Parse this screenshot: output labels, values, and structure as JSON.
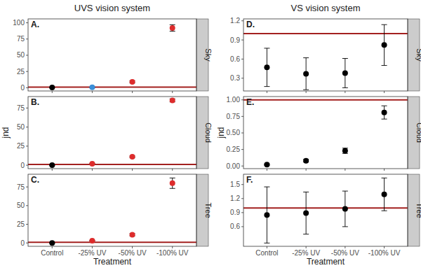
{
  "column_titles": [
    "UVS vision system",
    "VS vision system"
  ],
  "chart_data": [
    {
      "type": "scatter",
      "title": "A.",
      "subtitle": "Sky",
      "tick_labels": "y",
      "categories": [
        "Control",
        "-25% UV",
        "-50% UV",
        "-100% UV"
      ],
      "values": [
        0.3,
        0.6,
        9,
        92
      ],
      "errors": [
        0.3,
        0.3,
        1.5,
        5
      ],
      "colors": [
        "#000000",
        "#3b8ed8",
        "#dd2c2c",
        "#dd2c2c"
      ],
      "ylim": [
        -5,
        106
      ],
      "yticks": [
        0,
        25,
        50,
        75,
        100
      ],
      "hline": 1
    },
    {
      "type": "scatter",
      "title": "B.",
      "subtitle": "Cloud",
      "tick_labels": "y",
      "y_label": "jnd",
      "categories": [
        "Control",
        "-25% UV",
        "-50% UV",
        "-100% UV"
      ],
      "values": [
        0,
        2,
        11,
        85
      ],
      "errors": [
        0.3,
        0.5,
        1,
        2
      ],
      "colors": [
        "#000000",
        "#dd2c2c",
        "#dd2c2c",
        "#dd2c2c"
      ],
      "ylim": [
        -4.5,
        90
      ],
      "yticks": [
        0,
        25,
        50,
        75
      ],
      "hline": 1
    },
    {
      "type": "scatter",
      "title": "C.",
      "subtitle": "Tree",
      "x_label": "Treatment",
      "categories": [
        "Control",
        "-25% UV",
        "-50% UV",
        "-100% UV"
      ],
      "values": [
        0,
        3,
        11,
        80
      ],
      "errors": [
        0.3,
        0.5,
        1.5,
        7
      ],
      "colors": [
        "#000000",
        "#dd2c2c",
        "#dd2c2c",
        "#dd2c2c"
      ],
      "ylim": [
        -4.5,
        92
      ],
      "yticks": [
        0,
        25,
        50,
        75
      ],
      "hline": 1
    },
    {
      "type": "scatter",
      "title": "D.",
      "subtitle": "Sky",
      "tick_labels": "y",
      "categories": [
        "Control",
        "-25% UV",
        "-50% UV",
        "-100% UV"
      ],
      "values": [
        0.47,
        0.37,
        0.38,
        0.82
      ],
      "errors": [
        0.3,
        0.25,
        0.23,
        0.32
      ],
      "colors": [
        "#000000",
        "#000000",
        "#000000",
        "#000000"
      ],
      "ylim": [
        0.1,
        1.23
      ],
      "yticks": [
        0.3,
        0.6,
        0.9,
        1.2
      ],
      "hline": 1
    },
    {
      "type": "scatter",
      "title": "E.",
      "subtitle": "Cloud",
      "tick_labels": "y",
      "y_label": "jnd",
      "categories": [
        "Control",
        "-25% UV",
        "-50% UV",
        "-100% UV"
      ],
      "values": [
        0.02,
        0.08,
        0.23,
        0.81
      ],
      "errors": [
        0.01,
        0.02,
        0.04,
        0.1
      ],
      "colors": [
        "#000000",
        "#000000",
        "#000000",
        "#000000"
      ],
      "ylim": [
        -0.04,
        1.05
      ],
      "yticks": [
        {
          "value": 0,
          "label": "0.00"
        },
        {
          "value": 0.25,
          "label": "0.25"
        },
        {
          "value": 0.5,
          "label": "0.50"
        },
        {
          "value": 0.75,
          "label": "0.75"
        },
        {
          "value": 1,
          "label": "1.00"
        }
      ],
      "hline": 1
    },
    {
      "type": "scatter",
      "title": "F.",
      "subtitle": "Tree",
      "x_label": "Treatment",
      "categories": [
        "Control",
        "-25% UV",
        "-50% UV",
        "-100% UV"
      ],
      "values": [
        0.85,
        0.89,
        0.98,
        1.29
      ],
      "errors": [
        0.6,
        0.45,
        0.38,
        0.35
      ],
      "colors": [
        "#000000",
        "#000000",
        "#000000",
        "#000000"
      ],
      "ylim": [
        0.18,
        1.72
      ],
      "yticks": [
        0.6,
        0.9,
        1.2,
        1.5
      ],
      "hline": 1
    }
  ]
}
